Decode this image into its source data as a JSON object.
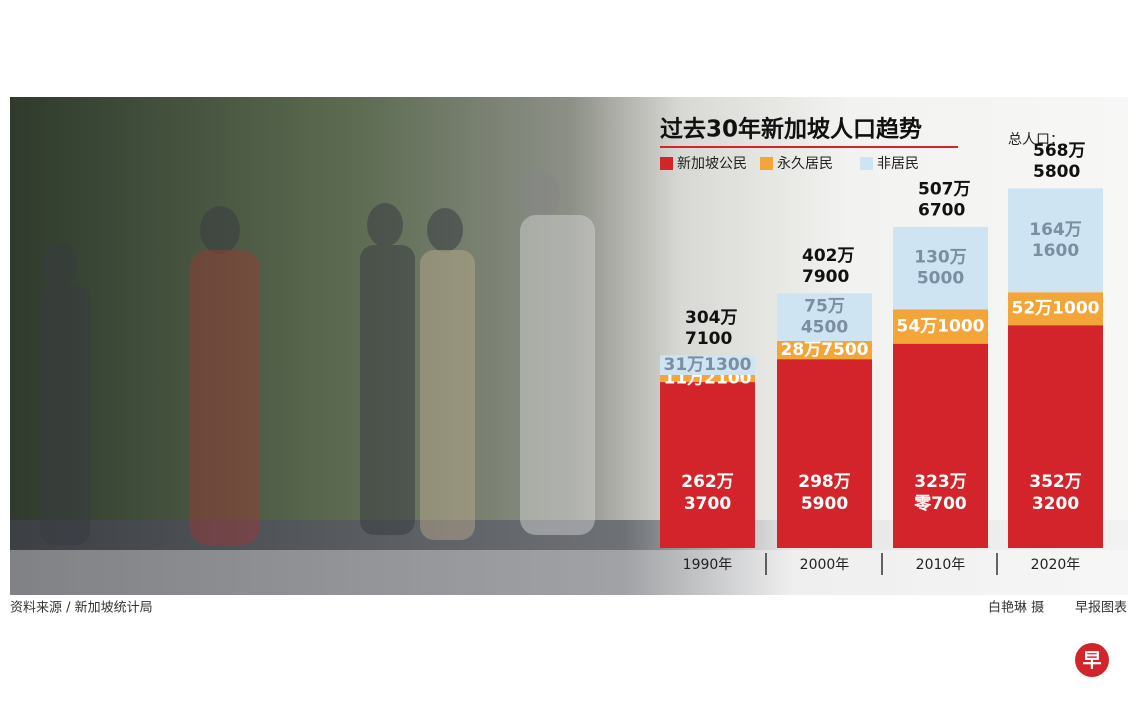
{
  "chart_data": {
    "type": "bar",
    "stacked": true,
    "title": "过去30年新加坡人口趋势",
    "categories": [
      "1990年",
      "2000年",
      "2010年",
      "2020年"
    ],
    "series": [
      {
        "name": "新加坡公民",
        "color": "#d2242a",
        "values": [
          2623700,
          2985900,
          3230700,
          3523200
        ],
        "value_labels": [
          "262万3700",
          "298万5900",
          "323万零700",
          "352万3200"
        ]
      },
      {
        "name": "永久居民",
        "color": "#f3a53a",
        "values": [
          112100,
          287500,
          541000,
          521000
        ],
        "value_labels": [
          "11万2100",
          "28万7500",
          "54万1000",
          "52万1000"
        ]
      },
      {
        "name": "非居民",
        "color": "#cfe4f3",
        "values": [
          311300,
          754500,
          1305000,
          1641600
        ],
        "value_labels": [
          "31万1300",
          "75万4500",
          "130万5000",
          "164万1600"
        ]
      }
    ],
    "totals_title": "总人口：",
    "totals": [
      3047100,
      4027900,
      5076700,
      5685800
    ],
    "total_labels": [
      "304万7100",
      "402万7900",
      "507万6700",
      "568万5800"
    ],
    "ylim": [
      0,
      7400000
    ],
    "source": "资料来源 / 新加坡统计局",
    "photo_credit": "白艳琳 摄",
    "graphic_credit": "早报图表",
    "logo": "早"
  }
}
